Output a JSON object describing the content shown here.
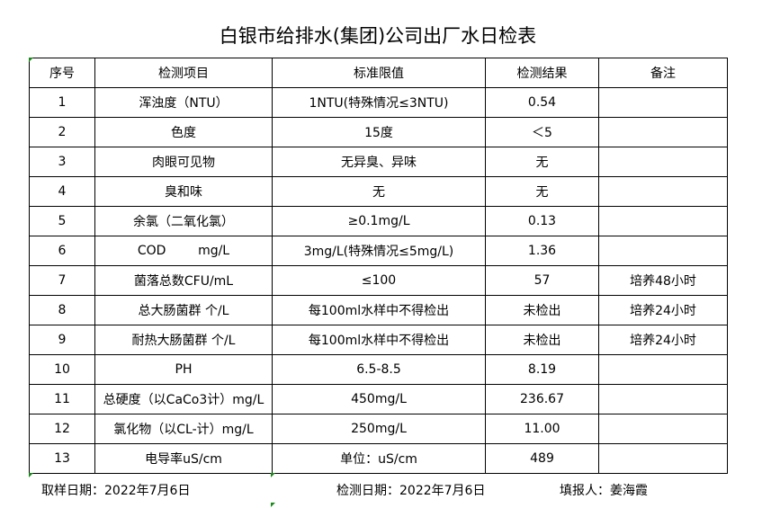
{
  "title": "白银市给排水(集团)公司出厂水日检表",
  "headers": [
    "序号",
    "检测项目",
    "标准限值",
    "检测结果",
    "备注"
  ],
  "rows": [
    [
      "1",
      "浑浊度（NTU）",
      "1NTU(特殊情况≤3NTU)",
      "0.54",
      ""
    ],
    [
      "2",
      "色度",
      "15度",
      "＜5",
      ""
    ],
    [
      "3",
      "肉眼可见物",
      "无异臭、异味",
      "无",
      ""
    ],
    [
      "4",
      "臭和味",
      "无",
      "无",
      ""
    ],
    [
      "5",
      "余氯（二氧化氯）",
      "≥0.1mg/L",
      "0.13",
      ""
    ],
    [
      "6",
      "COD        mg/L",
      "3mg/L(特殊情况≤5mg/L)",
      "1.36",
      ""
    ],
    [
      "7",
      "菌落总数CFU/mL",
      "≤100",
      "57",
      "培养48小时"
    ],
    [
      "8",
      "总大肠菌群 个/L",
      "每100ml水样中不得检出",
      "未检出",
      "培养24小时"
    ],
    [
      "9",
      "耐热大肠菌群 个/L",
      "每100ml水样中不得检出",
      "未检出",
      "培养24小时"
    ],
    [
      "10",
      "PH",
      "6.5-8.5",
      "8.19",
      ""
    ],
    [
      "11",
      "总硬度（以CaCo3计）mg/L",
      "450mg/L",
      "236.67",
      ""
    ],
    [
      "12",
      "氯化物（以CL-计）mg/L",
      "250mg/L",
      "11.00",
      ""
    ],
    [
      "13",
      "电导率uS/cm",
      "单位：uS/cm",
      "489",
      ""
    ]
  ],
  "footer": {
    "sample_date": "取样日期：2022年7月6日",
    "test_date": "检测日期：2022年7月6日",
    "reporter": "填报人：姜海霞"
  }
}
